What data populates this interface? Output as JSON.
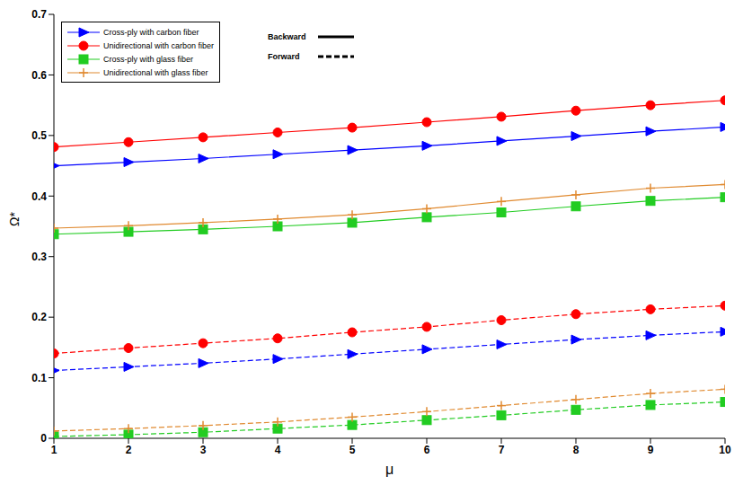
{
  "chart_data": {
    "type": "line",
    "xlabel": "μ",
    "ylabel": "Ω*",
    "x": [
      1,
      2,
      3,
      4,
      5,
      6,
      7,
      8,
      9,
      10
    ],
    "xlim": [
      1,
      10
    ],
    "xticks": [
      1,
      2,
      3,
      4,
      5,
      6,
      7,
      8,
      9,
      10
    ],
    "ylim": [
      0,
      0.7
    ],
    "yticks": [
      0,
      0.1,
      0.2,
      0.3,
      0.4,
      0.5,
      0.6,
      0.7
    ],
    "grid": false,
    "legend": "upper left",
    "annotations": [
      {
        "text": "Backward",
        "line_style": "solid"
      },
      {
        "text": "Forward",
        "line_style": "dashed"
      }
    ],
    "series": [
      {
        "name": "Cross-ply with carbon fiber",
        "color": "#0000ff",
        "marker": "triangle",
        "line_style": "solid",
        "values": [
          0.45,
          0.456,
          0.462,
          0.469,
          0.476,
          0.483,
          0.491,
          0.499,
          0.507,
          0.514
        ]
      },
      {
        "name": "Unidirectional with carbon fiber",
        "color": "#ff0000",
        "marker": "circle",
        "line_style": "solid",
        "values": [
          0.481,
          0.489,
          0.497,
          0.505,
          0.513,
          0.522,
          0.531,
          0.541,
          0.55,
          0.558
        ]
      },
      {
        "name": "Cross-ply with glass fiber",
        "color": "#22cc22",
        "marker": "square",
        "line_style": "solid",
        "values": [
          0.337,
          0.341,
          0.345,
          0.35,
          0.356,
          0.365,
          0.373,
          0.383,
          0.392,
          0.398
        ]
      },
      {
        "name": "Unidirectional with glass fiber",
        "color": "#e08a30",
        "marker": "plus",
        "line_style": "solid",
        "values": [
          0.347,
          0.351,
          0.356,
          0.362,
          0.369,
          0.379,
          0.391,
          0.402,
          0.413,
          0.419
        ]
      },
      {
        "name": "Cross-ply with carbon fiber",
        "color": "#0000ff",
        "marker": "triangle",
        "line_style": "dashed",
        "values": [
          0.112,
          0.118,
          0.124,
          0.131,
          0.139,
          0.147,
          0.155,
          0.163,
          0.17,
          0.176
        ]
      },
      {
        "name": "Unidirectional with carbon fiber",
        "color": "#ff0000",
        "marker": "circle",
        "line_style": "dashed",
        "values": [
          0.14,
          0.149,
          0.157,
          0.165,
          0.175,
          0.184,
          0.195,
          0.205,
          0.213,
          0.219
        ]
      },
      {
        "name": "Cross-ply with glass fiber",
        "color": "#22cc22",
        "marker": "square",
        "line_style": "dashed",
        "values": [
          0.003,
          0.006,
          0.01,
          0.016,
          0.022,
          0.03,
          0.038,
          0.047,
          0.055,
          0.06
        ]
      },
      {
        "name": "Unidirectional with glass fiber",
        "color": "#e08a30",
        "marker": "plus",
        "line_style": "dashed",
        "values": [
          0.012,
          0.016,
          0.021,
          0.027,
          0.035,
          0.044,
          0.054,
          0.064,
          0.074,
          0.081
        ]
      }
    ]
  }
}
